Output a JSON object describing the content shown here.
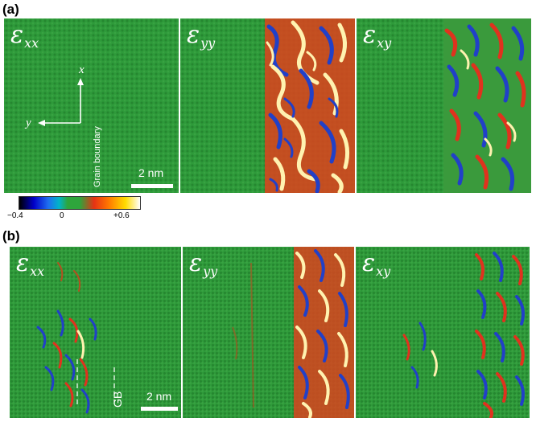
{
  "figure": {
    "part_a_label": "(a)",
    "part_b_label": "(b)",
    "grain_boundary_label": "Grain boundary",
    "gb_short_label": "GB",
    "axis_x": "x",
    "axis_y": "y",
    "scale_a": "2 nm",
    "scale_b": "2 nm"
  },
  "panels_a": [
    {
      "symbol": "ε",
      "sub": "xx"
    },
    {
      "symbol": "ε",
      "sub": "yy"
    },
    {
      "symbol": "ε",
      "sub": "xy"
    }
  ],
  "panels_b": [
    {
      "symbol": "ε",
      "sub": "xx"
    },
    {
      "symbol": "ε",
      "sub": "yy"
    },
    {
      "symbol": "ε",
      "sub": "xy"
    }
  ],
  "colorbar": {
    "min_label": "−0.4",
    "mid_label": "0",
    "max_label": "+0.6",
    "colors": [
      "#000000",
      "#0000c8",
      "#1e6ef0",
      "#00b4c8",
      "#2ea53c",
      "#2ea53c",
      "#e63214",
      "#ff7800",
      "#ffdc00",
      "#ffffff"
    ]
  },
  "colors": {
    "strain_neutral": "#2e9a3a",
    "strain_tensile": "#e0321e",
    "strain_compressive": "#2140c8",
    "strain_peak": "#fff2b0"
  }
}
